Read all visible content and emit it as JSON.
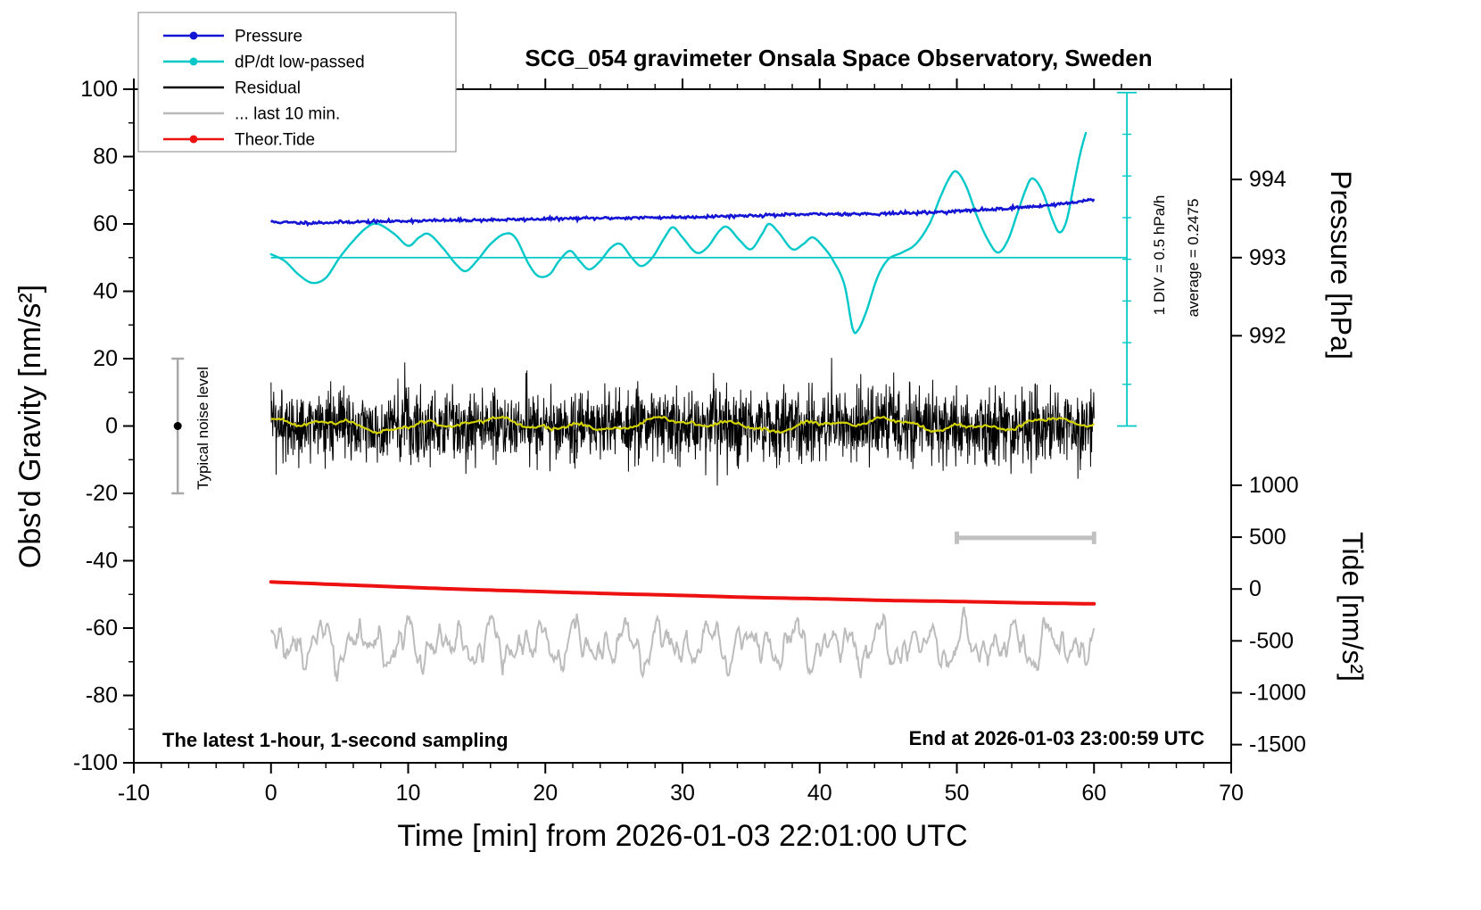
{
  "window_title": "SCG_054 gravimeter Onsala Space Observatory, Sweden",
  "chart_data": {
    "type": "line",
    "title": "SCG_054 gravimeter Onsala Space Observatory, Sweden",
    "xlabel": "Time [min] from 2026-01-03 22:01:00 UTC",
    "ylabel_left": "Obs'd Gravity [nm/s²]",
    "ylabel_pressure": "Pressure [hPa]",
    "ylabel_tide": "Tide [nm/s²]",
    "xlim": [
      -10,
      70
    ],
    "ylim": [
      -100,
      100
    ],
    "x_ticks": [
      -10,
      0,
      10,
      20,
      30,
      40,
      50,
      60,
      70
    ],
    "y_ticks": [
      -100,
      -80,
      -60,
      -40,
      -20,
      0,
      20,
      40,
      60,
      80,
      100
    ],
    "x_minor_step": 2,
    "y_minor_step": 10,
    "pressure_ticks": [
      {
        "label": "994",
        "y": 73.2
      },
      {
        "label": "993",
        "y": 50.0
      },
      {
        "label": "992",
        "y": 26.8
      }
    ],
    "tide_ticks": [
      {
        "label": "1000",
        "y": -17.6
      },
      {
        "label": "500",
        "y": -33.0
      },
      {
        "label": "0",
        "y": -48.4
      },
      {
        "label": "-500",
        "y": -63.8
      },
      {
        "label": "-1000",
        "y": -79.2
      },
      {
        "label": "-1500",
        "y": -94.6
      }
    ],
    "notes": {
      "div_note": "1 DIV = 0.5 hPa/h",
      "average_note": "average = 0.2475",
      "noise_note": "Typical noise level",
      "sampling_note": "The latest 1-hour, 1-second sampling",
      "end_note": "End at 2026-01-03 23:00:59 UTC"
    },
    "legend": [
      {
        "label": "Pressure",
        "color": "#1414d4",
        "marker": true
      },
      {
        "label": "dP/dt low-passed",
        "color": "#00c8c8",
        "marker": true
      },
      {
        "label": "Residual",
        "color": "#000000",
        "marker": false
      },
      {
        "label": "... last 10 min.",
        "color": "#b8b8b8",
        "marker": false
      },
      {
        "label": "Theor.Tide",
        "color": "#ee1111",
        "marker": true
      }
    ],
    "series": [
      {
        "id": "last10",
        "name": "... last 10 min.",
        "kind": "bandsum",
        "color": "#bcbcbc",
        "width": 2,
        "x0": 0,
        "x1": 60,
        "n": 900,
        "mean": -65,
        "terms": [
          [
            3.5,
            2.0,
            0.7
          ],
          [
            3.0,
            3.1,
            2.3
          ],
          [
            2.2,
            5.3,
            4.1
          ],
          [
            1.8,
            8.7,
            1.9
          ],
          [
            1.2,
            13.0,
            5.2
          ]
        ],
        "noise_std": 0.8,
        "seed": 7
      },
      {
        "id": "tide",
        "name": "Theor.Tide",
        "kind": "smooth",
        "color": "#ee1111",
        "width": 4,
        "points": [
          [
            0,
            -46.3
          ],
          [
            5,
            -47.1
          ],
          [
            10,
            -47.9
          ],
          [
            15,
            -48.6
          ],
          [
            20,
            -49.2
          ],
          [
            25,
            -49.8
          ],
          [
            30,
            -50.3
          ],
          [
            35,
            -50.9
          ],
          [
            40,
            -51.3
          ],
          [
            45,
            -51.8
          ],
          [
            50,
            -52.1
          ],
          [
            55,
            -52.5
          ],
          [
            60,
            -52.8
          ]
        ]
      },
      {
        "id": "residual",
        "name": "Residual",
        "kind": "noise",
        "color": "#000000",
        "width": 1,
        "x0": 0,
        "x1": 60,
        "n": 2400,
        "mean": 0,
        "std": 5.4,
        "clip": 23,
        "spike_every": 149,
        "spike_gain": 1.7,
        "seed": 42
      },
      {
        "id": "residual_mean",
        "name": "Residual smoothed",
        "kind": "bandsum",
        "color": "#d2d200",
        "width": 2.2,
        "x0": 0,
        "x1": 60,
        "n": 420,
        "mean": 0.4,
        "terms": [
          [
            1.1,
            0.45,
            0.8
          ],
          [
            0.9,
            1.1,
            2.1
          ],
          [
            0.5,
            2.3,
            0.3
          ]
        ],
        "noise_std": 0.25,
        "seed": 99
      },
      {
        "id": "dpdt_mean",
        "name": "dP/dt average line",
        "kind": "hline",
        "color": "#00c8c8",
        "width": 1.8,
        "y": 50,
        "x0": 0,
        "x1": 62.4
      },
      {
        "id": "dpdt_scale",
        "name": "dP/dt scale bar",
        "kind": "vscale",
        "color": "#00c8c8",
        "width": 1.8,
        "x": 62.4,
        "y0": 0,
        "y1": 99,
        "cap": 11,
        "divisions": 8
      },
      {
        "id": "dpdt",
        "name": "dP/dt low-passed",
        "kind": "smooth",
        "color": "#00c8c8",
        "width": 2.4,
        "points": [
          [
            0,
            51
          ],
          [
            1,
            49
          ],
          [
            2,
            45
          ],
          [
            3,
            42.5
          ],
          [
            4,
            44
          ],
          [
            5,
            50
          ],
          [
            6,
            55
          ],
          [
            7,
            59
          ],
          [
            7.8,
            60
          ],
          [
            9,
            57
          ],
          [
            10,
            53.5
          ],
          [
            10.8,
            56
          ],
          [
            11.5,
            57
          ],
          [
            12.5,
            53
          ],
          [
            13.5,
            48
          ],
          [
            14.2,
            46
          ],
          [
            15,
            49
          ],
          [
            16,
            54
          ],
          [
            17,
            57
          ],
          [
            17.8,
            56
          ],
          [
            18.8,
            48
          ],
          [
            19.5,
            44.5
          ],
          [
            20.3,
            45
          ],
          [
            21,
            49
          ],
          [
            21.8,
            52
          ],
          [
            22.5,
            49
          ],
          [
            23.2,
            46.5
          ],
          [
            24,
            49
          ],
          [
            24.8,
            53
          ],
          [
            25.5,
            54
          ],
          [
            26.3,
            50
          ],
          [
            27,
            47.5
          ],
          [
            27.8,
            50
          ],
          [
            28.7,
            56
          ],
          [
            29.3,
            59
          ],
          [
            30,
            56
          ],
          [
            31,
            51.5
          ],
          [
            31.8,
            53
          ],
          [
            32.7,
            58
          ],
          [
            33.3,
            59
          ],
          [
            34.2,
            55
          ],
          [
            35,
            52.5
          ],
          [
            35.8,
            57
          ],
          [
            36.3,
            60
          ],
          [
            37,
            57.5
          ],
          [
            38,
            52.5
          ],
          [
            38.8,
            54
          ],
          [
            39.5,
            56
          ],
          [
            40.3,
            53
          ],
          [
            41,
            49
          ],
          [
            41.8,
            42
          ],
          [
            42.4,
            29
          ],
          [
            42.8,
            28.5
          ],
          [
            43.4,
            34
          ],
          [
            44.2,
            44
          ],
          [
            45,
            49.5
          ],
          [
            46,
            51.5
          ],
          [
            47,
            54
          ],
          [
            48,
            60
          ],
          [
            48.8,
            68
          ],
          [
            49.5,
            74
          ],
          [
            50,
            75.5
          ],
          [
            50.7,
            71
          ],
          [
            51.5,
            62
          ],
          [
            52.3,
            55
          ],
          [
            53,
            51.5
          ],
          [
            53.7,
            55
          ],
          [
            54.4,
            63
          ],
          [
            55,
            70
          ],
          [
            55.5,
            73.5
          ],
          [
            56.2,
            70
          ],
          [
            57,
            61
          ],
          [
            57.5,
            57.5
          ],
          [
            58,
            61
          ],
          [
            58.5,
            71
          ],
          [
            59,
            81
          ],
          [
            59.4,
            87
          ]
        ]
      },
      {
        "id": "pressure",
        "name": "Pressure",
        "kind": "smooth_noisy",
        "color": "#1414d4",
        "width": 2.6,
        "noise_std": 0.22,
        "samples_per_min": 12,
        "seed": 11,
        "points": [
          [
            0,
            60.6
          ],
          [
            2,
            60.3
          ],
          [
            4,
            60.4
          ],
          [
            6,
            60.6
          ],
          [
            8,
            60.7
          ],
          [
            10,
            60.9
          ],
          [
            12,
            61.0
          ],
          [
            14,
            61.1
          ],
          [
            16,
            61.2
          ],
          [
            18,
            61.3
          ],
          [
            20,
            61.5
          ],
          [
            22,
            61.6
          ],
          [
            24,
            61.7
          ],
          [
            26,
            61.8
          ],
          [
            28,
            61.9
          ],
          [
            30,
            62.0
          ],
          [
            32,
            62.2
          ],
          [
            34,
            62.4
          ],
          [
            36,
            62.6
          ],
          [
            38,
            62.7
          ],
          [
            40,
            62.9
          ],
          [
            42,
            63.0
          ],
          [
            44,
            63.0
          ],
          [
            46,
            63.2
          ],
          [
            48,
            63.4
          ],
          [
            50,
            63.8
          ],
          [
            52,
            64.2
          ],
          [
            54,
            64.7
          ],
          [
            55,
            65.0
          ],
          [
            56,
            65.3
          ],
          [
            57,
            65.7
          ],
          [
            58,
            66.1
          ],
          [
            59,
            66.7
          ],
          [
            60,
            67.4
          ]
        ]
      },
      {
        "id": "noise_level",
        "name": "Typical noise level bar",
        "kind": "errbar_v",
        "color": "#a8a8a8",
        "width": 2.5,
        "x": -6.8,
        "y0": -20,
        "y1": 20,
        "cap": 7,
        "dot_y": 0,
        "dot_color": "#000000",
        "dot_r": 4.5
      },
      {
        "id": "span_bar",
        "name": "10-minute span bar",
        "kind": "errbar_h",
        "color": "#c0c0c0",
        "width": 5,
        "y": -33.2,
        "x0": 50,
        "x1": 60,
        "cap": 7
      }
    ]
  }
}
